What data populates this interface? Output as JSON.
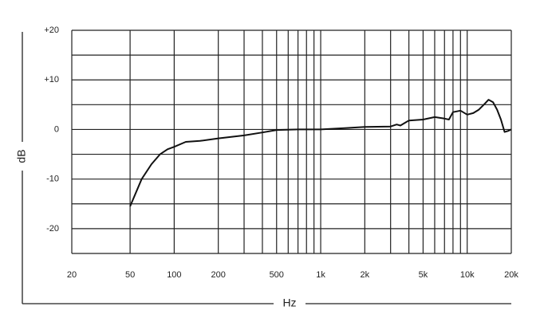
{
  "chart_data": {
    "type": "line",
    "xlabel": "Hz",
    "ylabel": "dB",
    "xscale": "log",
    "xlim": [
      20,
      20000
    ],
    "xticks": [
      20,
      50,
      100,
      200,
      500,
      {
        "value": 1000,
        "label": "1k"
      },
      {
        "value": 2000,
        "label": "2k"
      },
      {
        "value": 5000,
        "label": "5k"
      },
      {
        "value": 10000,
        "label": "10k"
      },
      {
        "value": 20000,
        "label": "20k"
      }
    ],
    "x_minor_ticks": [
      300,
      400,
      600,
      700,
      800,
      900,
      3000,
      4000,
      6000,
      7000,
      8000,
      9000
    ],
    "ylim": [
      -25,
      20
    ],
    "yticks": [
      {
        "value": 20,
        "label": "+20"
      },
      {
        "value": 10,
        "label": "+10"
      },
      0,
      -10,
      -20
    ],
    "y_minor_ticks": [
      15,
      5,
      -5,
      -15,
      -25
    ],
    "grid": true,
    "x": [
      50,
      60,
      70,
      80,
      90,
      100,
      120,
      150,
      200,
      300,
      400,
      500,
      700,
      1000,
      1500,
      2000,
      3000,
      3300,
      3500,
      4000,
      5000,
      6000,
      7000,
      7500,
      8000,
      9000,
      10000,
      11000,
      12000,
      13000,
      14000,
      15000,
      16000,
      17000,
      18000,
      19000,
      20000
    ],
    "series": [
      {
        "color": "#111111",
        "values": [
          -15.5,
          -10,
          -7,
          -5,
          -4,
          -3.5,
          -2.5,
          -2.3,
          -1.8,
          -1.2,
          -0.6,
          -0.1,
          0,
          0,
          0.3,
          0.5,
          0.6,
          1,
          0.8,
          1.8,
          2,
          2.5,
          2.2,
          2,
          3.5,
          3.8,
          3,
          3.3,
          4,
          5,
          6,
          5.5,
          4,
          2,
          -0.5,
          -0.3,
          0
        ]
      }
    ]
  }
}
